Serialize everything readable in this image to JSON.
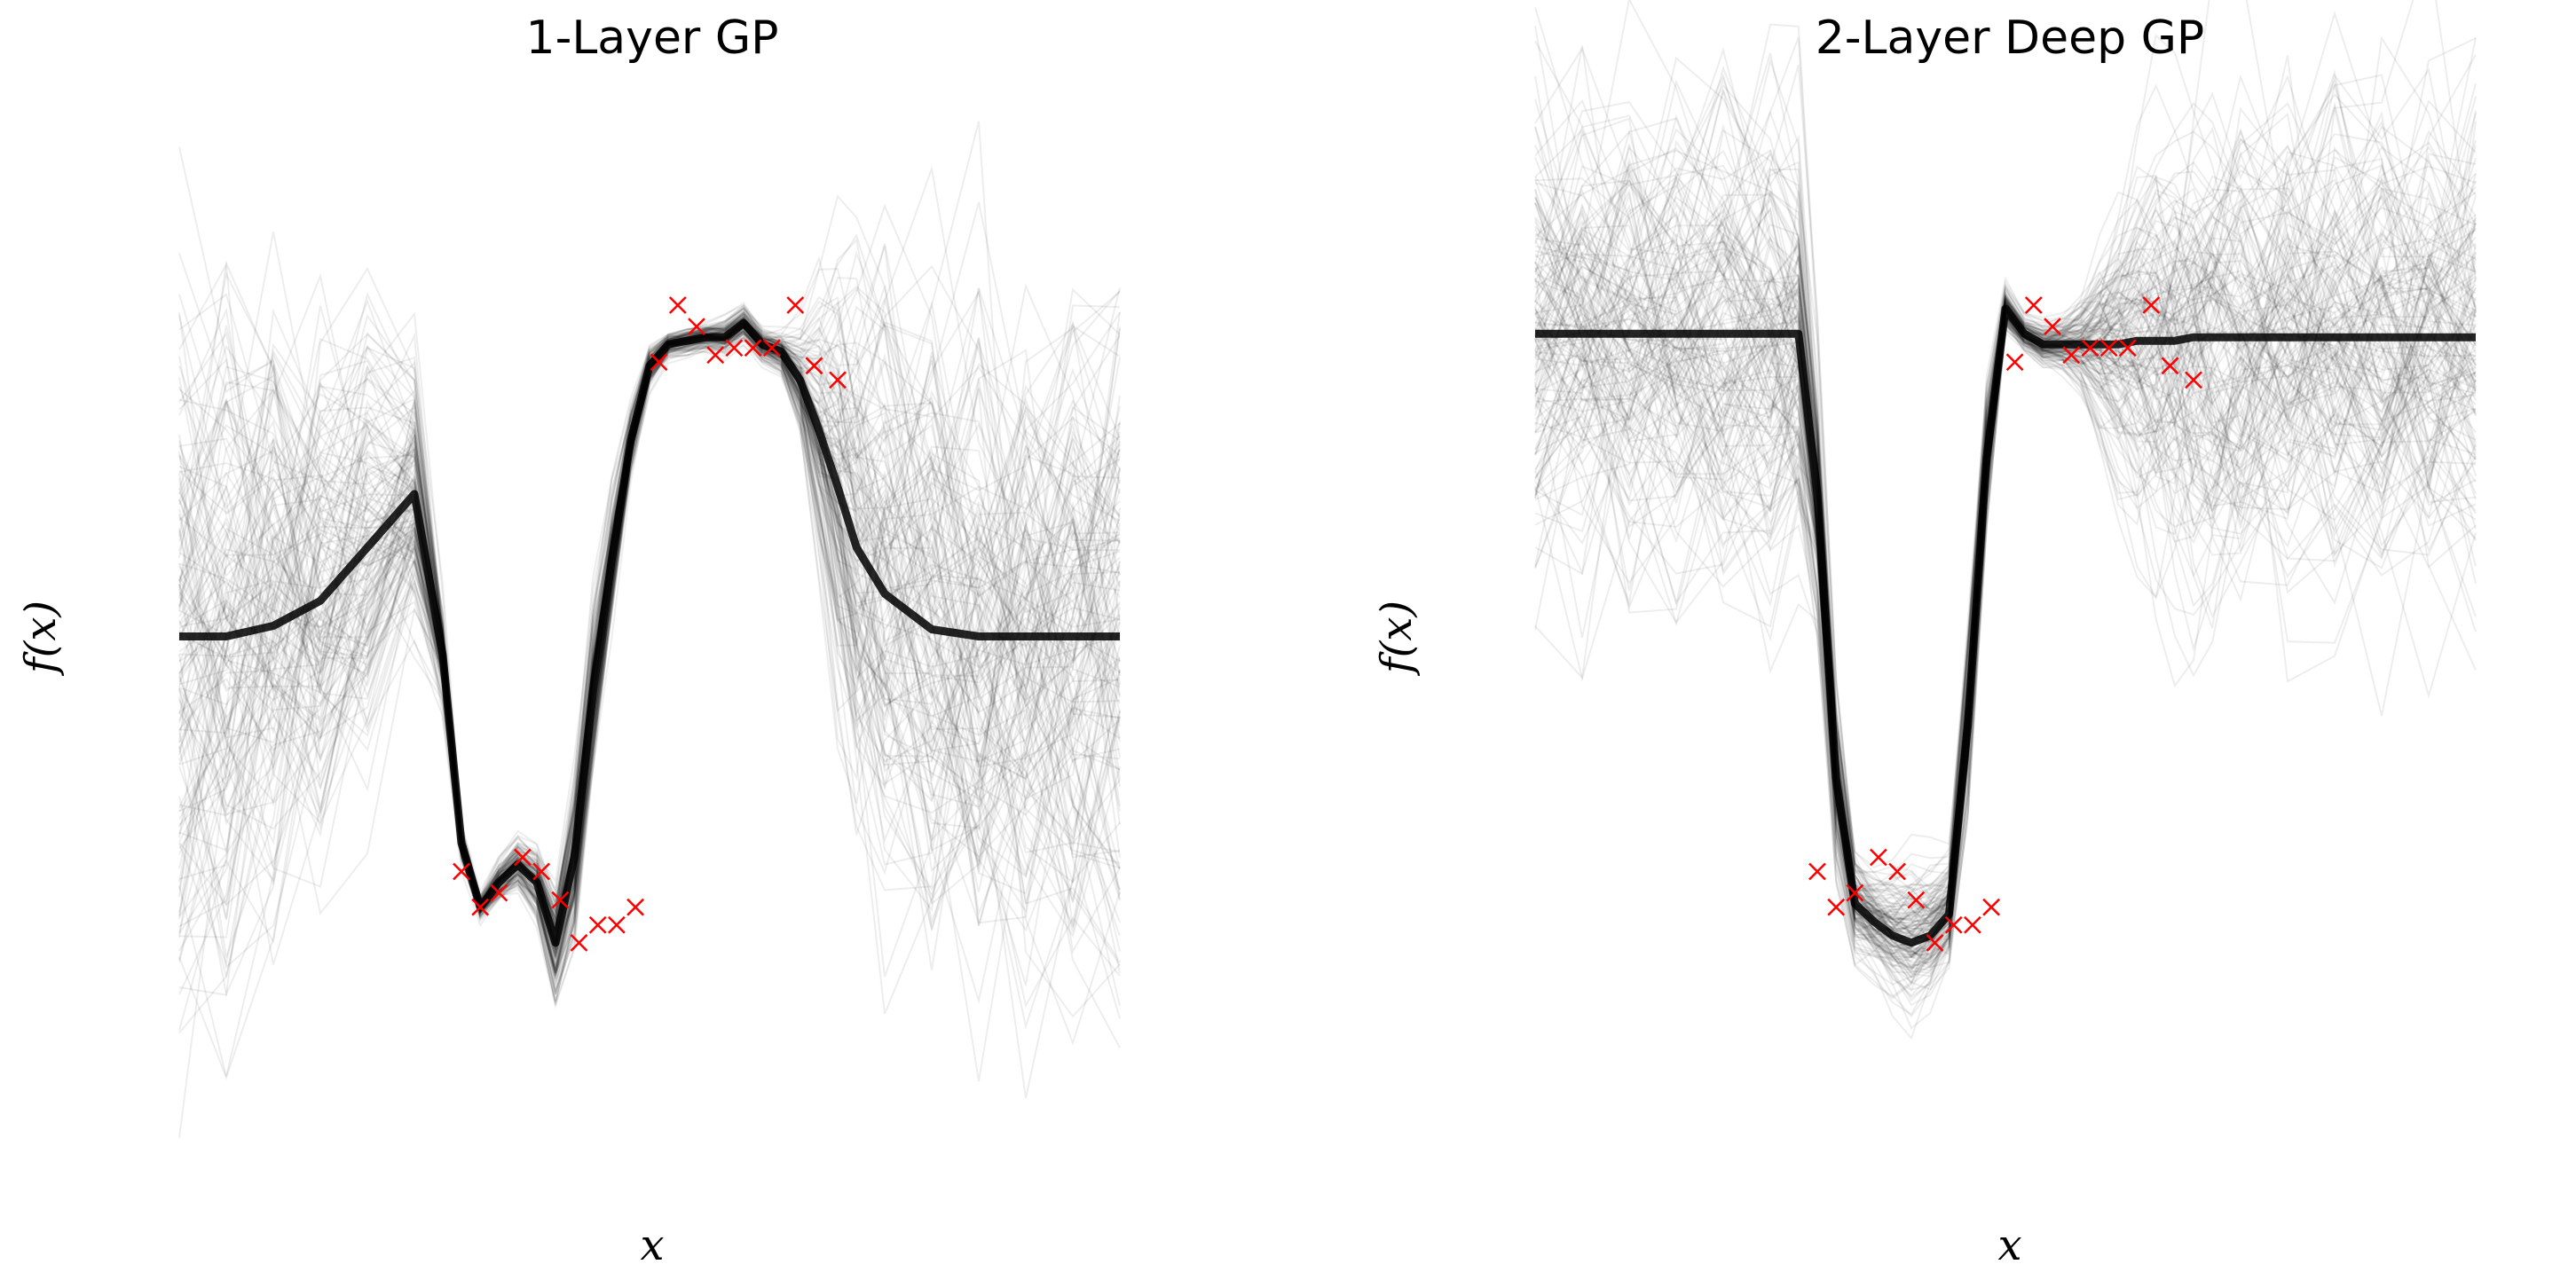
{
  "chart_data": [
    {
      "type": "line",
      "title": "1-Layer GP",
      "xlabel": "x",
      "ylabel": "f(x)",
      "xlim": [
        0,
        1
      ],
      "ylim": [
        -1.6,
        1.6
      ],
      "axes_visible": false,
      "grid": false,
      "series": [
        {
          "kind": "posterior-samples",
          "color": "#000000",
          "x": [
            0.0,
            0.05,
            0.1,
            0.15,
            0.2,
            0.25,
            0.28,
            0.3,
            0.32,
            0.34,
            0.36,
            0.38,
            0.4,
            0.42,
            0.44,
            0.46,
            0.48,
            0.5,
            0.52,
            0.54,
            0.56,
            0.58,
            0.6,
            0.62,
            0.64,
            0.66,
            0.68,
            0.7,
            0.72,
            0.75,
            0.8,
            0.85,
            0.9,
            0.95,
            1.0
          ],
          "mean": [
            0.0,
            0.0,
            0.03,
            0.1,
            0.25,
            0.4,
            -0.05,
            -0.58,
            -0.76,
            -0.69,
            -0.64,
            -0.69,
            -0.86,
            -0.62,
            -0.15,
            0.22,
            0.55,
            0.76,
            0.82,
            0.83,
            0.84,
            0.84,
            0.88,
            0.82,
            0.8,
            0.72,
            0.58,
            0.42,
            0.25,
            0.12,
            0.02,
            0.0,
            0.0,
            0.0,
            0.0
          ],
          "std": [
            0.85,
            0.85,
            0.8,
            0.7,
            0.55,
            0.35,
            0.12,
            0.04,
            0.03,
            0.05,
            0.06,
            0.08,
            0.13,
            0.2,
            0.2,
            0.15,
            0.08,
            0.05,
            0.03,
            0.03,
            0.03,
            0.04,
            0.04,
            0.04,
            0.05,
            0.12,
            0.3,
            0.5,
            0.65,
            0.75,
            0.82,
            0.85,
            0.85,
            0.85,
            0.85
          ]
        },
        {
          "kind": "observations",
          "marker": "x",
          "color": "#ff0000",
          "x": [
            0.3,
            0.32,
            0.34,
            0.365,
            0.385,
            0.405,
            0.425,
            0.445,
            0.465,
            0.485,
            0.51,
            0.53,
            0.55,
            0.57,
            0.59,
            0.61,
            0.63,
            0.655,
            0.675,
            0.7
          ],
          "y": [
            -0.66,
            -0.76,
            -0.72,
            -0.62,
            -0.66,
            -0.74,
            -0.86,
            -0.81,
            -0.81,
            -0.76,
            0.77,
            0.93,
            0.87,
            0.79,
            0.81,
            0.81,
            0.81,
            0.93,
            0.76,
            0.72
          ]
        }
      ]
    },
    {
      "type": "line",
      "title": "2-Layer Deep GP",
      "xlabel": "x",
      "ylabel": "f(x)",
      "xlim": [
        0,
        1
      ],
      "ylim": [
        -1.6,
        1.6
      ],
      "axes_visible": false,
      "grid": false,
      "series": [
        {
          "kind": "posterior-samples",
          "color": "#000000",
          "x": [
            0.0,
            0.05,
            0.1,
            0.15,
            0.2,
            0.25,
            0.28,
            0.3,
            0.32,
            0.34,
            0.36,
            0.38,
            0.4,
            0.42,
            0.44,
            0.46,
            0.48,
            0.5,
            0.52,
            0.54,
            0.56,
            0.58,
            0.6,
            0.62,
            0.64,
            0.66,
            0.68,
            0.7,
            0.72,
            0.75,
            0.8,
            0.85,
            0.9,
            0.95,
            1.0
          ],
          "mean": [
            0.85,
            0.85,
            0.85,
            0.85,
            0.85,
            0.85,
            0.85,
            0.4,
            -0.4,
            -0.75,
            -0.8,
            -0.84,
            -0.86,
            -0.84,
            -0.78,
            -0.25,
            0.5,
            0.92,
            0.85,
            0.82,
            0.82,
            0.82,
            0.82,
            0.82,
            0.83,
            0.83,
            0.83,
            0.84,
            0.84,
            0.84,
            0.84,
            0.84,
            0.84,
            0.84,
            0.84
          ],
          "std": [
            0.6,
            0.6,
            0.6,
            0.6,
            0.6,
            0.6,
            0.5,
            0.3,
            0.2,
            0.12,
            0.12,
            0.15,
            0.18,
            0.15,
            0.12,
            0.2,
            0.15,
            0.05,
            0.04,
            0.05,
            0.06,
            0.1,
            0.2,
            0.3,
            0.4,
            0.5,
            0.55,
            0.6,
            0.6,
            0.6,
            0.6,
            0.6,
            0.6,
            0.6,
            0.6
          ]
        },
        {
          "kind": "observations",
          "marker": "x",
          "color": "#ff0000",
          "x": [
            0.3,
            0.32,
            0.34,
            0.365,
            0.385,
            0.405,
            0.425,
            0.445,
            0.465,
            0.485,
            0.51,
            0.53,
            0.55,
            0.57,
            0.59,
            0.61,
            0.63,
            0.655,
            0.675,
            0.7
          ],
          "y": [
            -0.66,
            -0.76,
            -0.72,
            -0.62,
            -0.66,
            -0.74,
            -0.86,
            -0.81,
            -0.81,
            -0.76,
            0.77,
            0.93,
            0.87,
            0.79,
            0.81,
            0.81,
            0.81,
            0.93,
            0.76,
            0.72
          ]
        }
      ]
    }
  ]
}
